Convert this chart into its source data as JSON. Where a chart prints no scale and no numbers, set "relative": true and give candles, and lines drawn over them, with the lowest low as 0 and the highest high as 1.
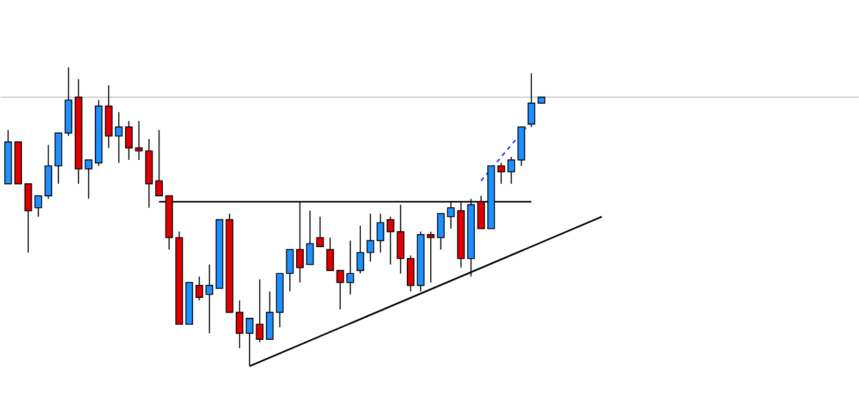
{
  "chart_data": {
    "type": "candlestick",
    "relative": true,
    "categories": [
      null,
      null,
      null,
      null,
      null,
      null,
      null,
      null,
      null,
      null,
      null,
      null,
      null,
      null,
      null,
      null,
      null,
      null,
      null,
      null,
      null,
      null,
      null,
      null,
      null,
      null,
      null,
      null,
      null,
      null,
      null,
      null,
      null,
      null,
      null,
      null,
      null,
      null,
      null,
      null,
      null,
      null,
      null,
      null,
      null,
      null,
      null,
      null,
      null,
      null,
      null,
      null,
      null,
      null,
      null,
      null,
      null,
      null,
      null,
      null
    ],
    "ohlc": [
      [
        0.61,
        0.79,
        0.61,
        0.75
      ],
      [
        0.75,
        0.75,
        0.61,
        0.61
      ],
      [
        0.61,
        0.61,
        0.38,
        0.52
      ],
      [
        0.53,
        0.57,
        0.5,
        0.57
      ],
      [
        0.57,
        0.74,
        0.56,
        0.67
      ],
      [
        0.67,
        0.78,
        0.61,
        0.78
      ],
      [
        0.78,
        1,
        0.77,
        0.89
      ],
      [
        0.9,
        0.96,
        0.61,
        0.66
      ],
      [
        0.66,
        0.69,
        0.56,
        0.69
      ],
      [
        0.68,
        0.89,
        0.67,
        0.87
      ],
      [
        0.87,
        0.94,
        0.73,
        0.77
      ],
      [
        0.77,
        0.85,
        0.68,
        0.8
      ],
      [
        0.8,
        0.82,
        0.69,
        0.73
      ],
      [
        0.73,
        0.82,
        0.69,
        0.72
      ],
      [
        0.72,
        0.76,
        0.53,
        0.61
      ],
      [
        0.62,
        0.79,
        0.57,
        0.57
      ],
      [
        0.57,
        0.57,
        0.39,
        0.43
      ],
      [
        0.43,
        0.45,
        0.14,
        0.14
      ],
      [
        0.14,
        0.28,
        0.14,
        0.28
      ],
      [
        0.27,
        0.3,
        0.22,
        0.23
      ],
      [
        0.24,
        0.34,
        0.11,
        0.27
      ],
      [
        0.26,
        0.49,
        0.26,
        0.49
      ],
      [
        0.49,
        0.51,
        0.18,
        0.18
      ],
      [
        0.18,
        0.22,
        0.06,
        0.11
      ],
      [
        0.11,
        0.16,
        0,
        0.16
      ],
      [
        0.14,
        0.29,
        0.08,
        0.09
      ],
      [
        0.09,
        0.25,
        0.09,
        0.18
      ],
      [
        0.18,
        0.31,
        0.13,
        0.31
      ],
      [
        0.31,
        0.39,
        0.25,
        0.39
      ],
      [
        0.39,
        0.55,
        0.28,
        0.33
      ],
      [
        0.34,
        0.52,
        0.34,
        0.41
      ],
      [
        0.43,
        0.5,
        0.4,
        0.4
      ],
      [
        0.39,
        0.43,
        0.32,
        0.32
      ],
      [
        0.32,
        0.32,
        0.19,
        0.28
      ],
      [
        0.28,
        0.42,
        0.24,
        0.31
      ],
      [
        0.32,
        0.47,
        0.31,
        0.38
      ],
      [
        0.38,
        0.51,
        0.35,
        0.42
      ],
      [
        0.42,
        0.51,
        0.38,
        0.48
      ],
      [
        0.49,
        0.5,
        0.34,
        0.45
      ],
      [
        0.45,
        0.54,
        0.31,
        0.36
      ],
      [
        0.36,
        0.37,
        0.25,
        0.27
      ],
      [
        0.27,
        0.45,
        0.25,
        0.44
      ],
      [
        0.44,
        0.45,
        0.28,
        0.43
      ],
      [
        0.43,
        0.51,
        0.39,
        0.51
      ],
      [
        0.5,
        0.55,
        0.46,
        0.53
      ],
      [
        0.52,
        0.55,
        0.33,
        0.36
      ],
      [
        0.36,
        0.56,
        0.3,
        0.54
      ],
      [
        0.55,
        0.57,
        0.46,
        0.46
      ],
      [
        0.46,
        0.67,
        0.46,
        0.67
      ],
      [
        0.67,
        0.68,
        0.61,
        0.65
      ],
      [
        0.65,
        0.7,
        0.61,
        0.69
      ],
      [
        0.69,
        0.8,
        0.67,
        0.8
      ],
      [
        0.81,
        0.98,
        0.8,
        0.88
      ],
      [
        0.88,
        0.9,
        0.88,
        0.9
      ],
      null,
      null,
      null,
      null,
      null,
      null
    ],
    "colors": [
      "#1e90ff",
      "#e00000",
      "#e00000",
      "#1e90ff",
      "#1e90ff",
      "#1e90ff",
      "#1e90ff",
      "#e00000",
      "#1e90ff",
      "#1e90ff",
      "#e00000",
      "#1e90ff",
      "#e00000",
      "#e00000",
      "#e00000",
      "#e00000",
      "#e00000",
      "#e00000",
      "#1e90ff",
      "#e00000",
      "#1e90ff",
      "#1e90ff",
      "#e00000",
      "#e00000",
      "#1e90ff",
      "#e00000",
      "#1e90ff",
      "#1e90ff",
      "#1e90ff",
      "#e00000",
      "#1e90ff",
      "#e00000",
      "#e00000",
      "#e00000",
      "#1e90ff",
      "#1e90ff",
      "#1e90ff",
      "#1e90ff",
      "#e00000",
      "#e00000",
      "#e00000",
      "#1e90ff",
      "#e00000",
      "#1e90ff",
      "#1e90ff",
      "#e00000",
      "#1e90ff",
      "#e00000",
      "#1e90ff",
      "#e00000",
      "#1e90ff",
      "#1e90ff",
      "#1e90ff",
      "#1e90ff",
      null,
      null,
      null,
      null,
      null,
      null
    ],
    "series": [
      {
        "type": "line",
        "color": "#000000",
        "values": [
          null,
          null,
          null,
          null,
          null,
          null,
          null,
          null,
          null,
          null,
          null,
          null,
          null,
          null,
          null,
          0.55,
          null,
          null,
          null,
          null,
          null,
          null,
          null,
          null,
          null,
          null,
          null,
          null,
          null,
          null,
          null,
          null,
          null,
          null,
          null,
          null,
          null,
          null,
          null,
          null,
          null,
          null,
          null,
          null,
          null,
          null,
          null,
          null,
          null,
          null,
          null,
          null,
          0.55,
          null,
          null,
          null,
          null,
          null,
          null,
          null
        ]
      },
      {
        "type": "line",
        "color": "#000000",
        "values": [
          null,
          null,
          null,
          null,
          null,
          null,
          null,
          null,
          null,
          null,
          null,
          null,
          null,
          null,
          null,
          null,
          null,
          null,
          null,
          null,
          null,
          null,
          null,
          null,
          0,
          null,
          null,
          null,
          null,
          null,
          null,
          null,
          null,
          null,
          null,
          null,
          null,
          null,
          null,
          null,
          null,
          null,
          null,
          null,
          null,
          null,
          null,
          null,
          null,
          null,
          null,
          null,
          null,
          null,
          null,
          null,
          null,
          null,
          null,
          0.5
        ]
      },
      {
        "type": "line",
        "color": "#3040ff",
        "line_style": "dashed",
        "values": [
          null,
          null,
          null,
          null,
          null,
          null,
          null,
          null,
          null,
          null,
          null,
          null,
          null,
          null,
          null,
          null,
          null,
          null,
          null,
          null,
          null,
          null,
          null,
          null,
          null,
          null,
          null,
          null,
          null,
          null,
          null,
          null,
          null,
          null,
          null,
          null,
          null,
          null,
          null,
          null,
          null,
          null,
          null,
          null,
          null,
          null,
          null,
          0.62,
          null,
          null,
          null,
          null,
          0.82,
          null,
          null,
          null,
          null,
          null,
          null,
          null
        ]
      }
    ],
    "ref_lines": [
      {
        "axis": "y",
        "value": 0.9,
        "color": "#c0c0c0"
      }
    ]
  }
}
